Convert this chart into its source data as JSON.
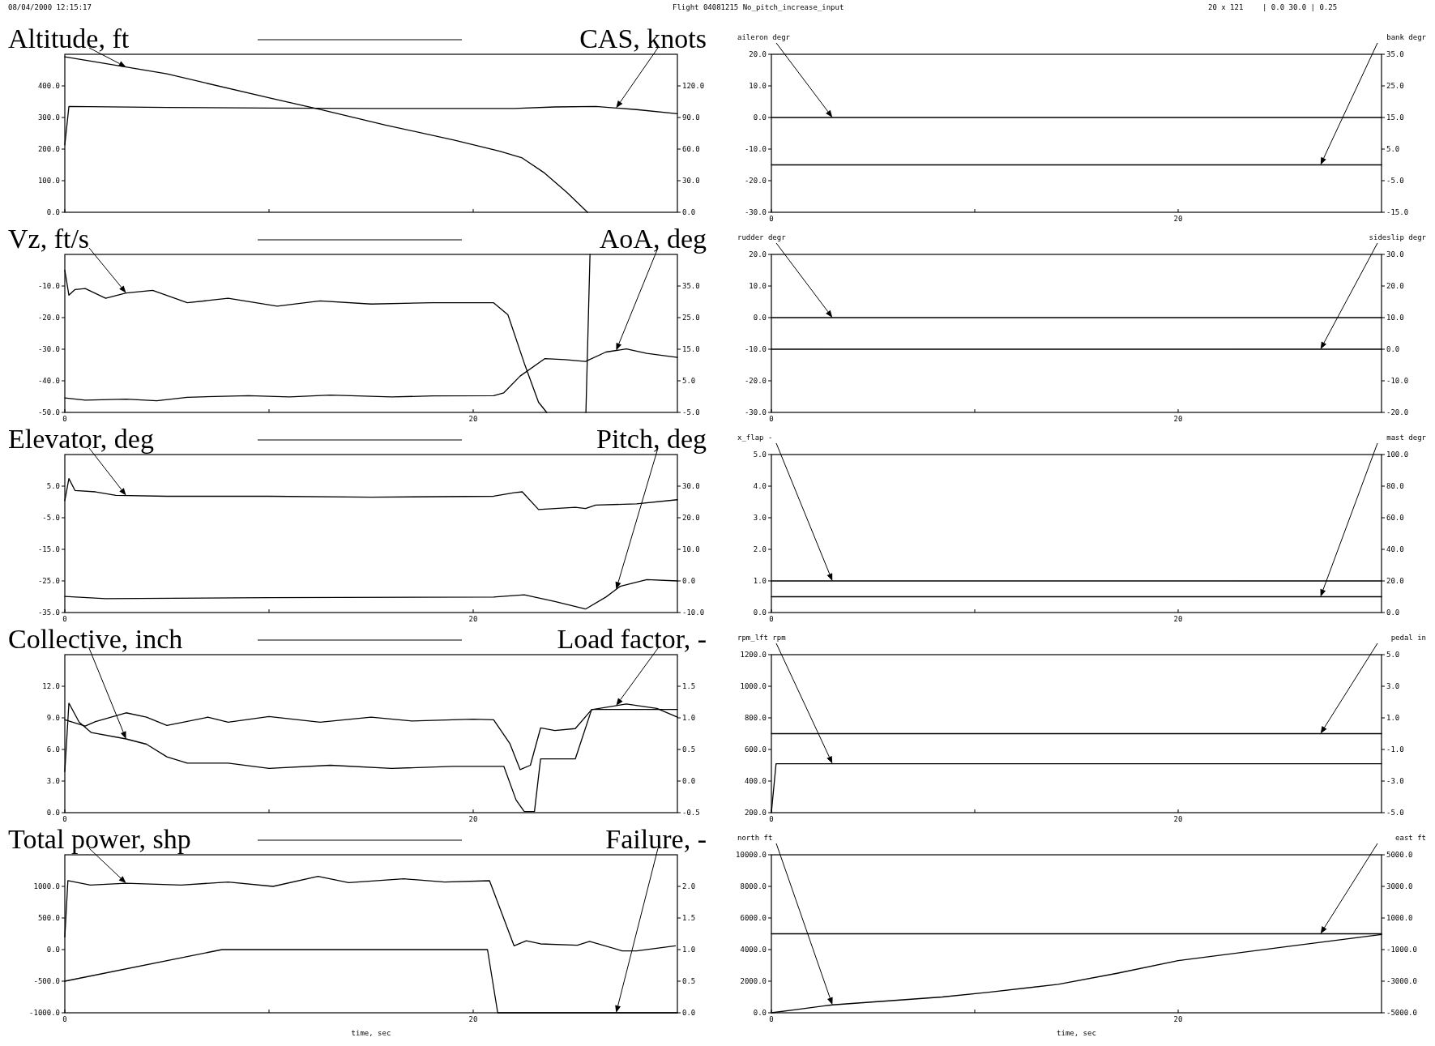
{
  "chart_data": [
    {
      "type": "line",
      "title": "Flight 04081215 No_pitch_increase_input",
      "annotations": [
        "08/04/2000 12:15:17",
        "20 x 121",
        "| 0.0 30.0 | 0.25"
      ],
      "ylabel": "Altitude, ft",
      "y2label": "CAS, knots",
      "xlim": [
        0,
        30
      ],
      "tick_labels": "y",
      "xticks": [
        0,
        10,
        20
      ],
      "ylim": [
        0,
        500
      ],
      "yticks": [
        {
          "value": 0,
          "label": "0.0"
        },
        {
          "value": 100,
          "label": "100.0"
        },
        {
          "value": 200,
          "label": "200.0"
        },
        {
          "value": 300,
          "label": "300.0"
        },
        {
          "value": 400,
          "label": "400.0"
        }
      ],
      "y2lim": [
        0,
        150
      ],
      "y2ticks": [
        {
          "value": 0,
          "label": "0.0"
        },
        {
          "value": 30,
          "label": "30.0"
        },
        {
          "value": 60,
          "label": "60.0"
        },
        {
          "value": 90,
          "label": "90.0"
        },
        {
          "value": 120,
          "label": "120.0"
        }
      ],
      "series": [
        {
          "color": "#000000",
          "axis": "y",
          "x": [
            0,
            1.5,
            5,
            10.2,
            12.6,
            15.7,
            19.1,
            21.3,
            22.4,
            23.5,
            24.6,
            25.6
          ],
          "values": [
            492,
            476,
            438,
            359,
            324,
            276,
            228,
            193,
            172,
            124,
            62,
            0
          ]
        },
        {
          "color": "#000000",
          "axis": "y2",
          "x": [
            0,
            0.2,
            5,
            10,
            15,
            22,
            24,
            26,
            28,
            30
          ],
          "values": [
            64,
            100.5,
            99.5,
            99,
            98.5,
            98.5,
            100,
            100.5,
            97.5,
            93.5
          ]
        }
      ]
    },
    {
      "type": "line",
      "ylabel": "Vz, ft/s",
      "y2label": "AoA, deg",
      "xlim": [
        0,
        30
      ],
      "xticks": [
        {
          "value": 0,
          "label": "0"
        },
        {
          "value": 10,
          "label": null
        },
        {
          "value": 20,
          "label": "20"
        }
      ],
      "ylim": [
        -50,
        0
      ],
      "yticks": [
        {
          "value": -50,
          "label": "-50.0"
        },
        {
          "value": -40,
          "label": "-40.0"
        },
        {
          "value": -30,
          "label": "-30.0"
        },
        {
          "value": -20,
          "label": "-20.0"
        },
        {
          "value": -10,
          "label": "-10.0"
        }
      ],
      "y2lim": [
        -5,
        45
      ],
      "y2ticks": [
        {
          "value": -5,
          "label": "-5.0"
        },
        {
          "value": 5,
          "label": "5.0"
        },
        {
          "value": 15,
          "label": "15.0"
        },
        {
          "value": 25,
          "label": "25.0"
        },
        {
          "value": 35,
          "label": "35.0"
        }
      ],
      "series": [
        {
          "color": "#000000",
          "axis": "y",
          "x": [
            0,
            0.2,
            0.5,
            1,
            2,
            3,
            4.3,
            6,
            8,
            10.4,
            12.5,
            15,
            18,
            21,
            21.7,
            22.5,
            23.2,
            23.6,
            24.5,
            25.52,
            25.72
          ],
          "values": [
            -5,
            -12.9,
            -11.1,
            -10.8,
            -13.9,
            -12.2,
            -11.4,
            -15.3,
            -13.9,
            -16.4,
            -14.7,
            -15.7,
            -15.3,
            -15.3,
            -19.1,
            -34.4,
            -46.8,
            -50,
            null,
            -50,
            0
          ]
        },
        {
          "color": "#000000",
          "axis": "y2",
          "x": [
            0,
            1,
            3,
            4.5,
            6,
            9,
            11,
            13,
            16,
            18,
            21,
            21.5,
            22.3,
            23.5,
            24.5,
            25.5,
            26.5,
            27.5,
            28.5,
            30
          ],
          "values": [
            -0.4,
            -1.1,
            -0.8,
            -1.3,
            -0.2,
            0.3,
            -0.1,
            0.5,
            -0.1,
            0.2,
            0.3,
            1.2,
            6.5,
            12,
            11.7,
            11.1,
            14.1,
            15.1,
            13.7,
            12.4
          ]
        }
      ]
    },
    {
      "type": "line",
      "ylabel": "Elevator, deg",
      "y2label": "Pitch, deg",
      "xlim": [
        0,
        30
      ],
      "xticks": [
        {
          "value": 0,
          "label": "0"
        },
        {
          "value": 10,
          "label": null
        },
        {
          "value": 20,
          "label": "20"
        }
      ],
      "ylim": [
        -35,
        15
      ],
      "yticks": [
        {
          "value": -35,
          "label": "-35.0"
        },
        {
          "value": -25,
          "label": "-25.0"
        },
        {
          "value": -15,
          "label": "-15.0"
        },
        {
          "value": -5,
          "label": "-5.0"
        },
        {
          "value": 5,
          "label": "5.0"
        }
      ],
      "y2lim": [
        -10,
        40
      ],
      "y2ticks": [
        {
          "value": -10,
          "label": "-10.0"
        },
        {
          "value": 0,
          "label": "0.0"
        },
        {
          "value": 10,
          "label": "10.0"
        },
        {
          "value": 20,
          "label": "20.0"
        },
        {
          "value": 30,
          "label": "30.0"
        }
      ],
      "series": [
        {
          "color": "#000000",
          "axis": "y",
          "x": [
            0,
            0.2,
            0.5,
            1.5,
            2.5,
            5,
            10,
            15,
            21,
            22,
            22.4,
            23.2,
            25,
            25.5,
            26,
            28,
            30
          ],
          "values": [
            0.4,
            7.4,
            3.6,
            3.2,
            2.1,
            1.8,
            1.8,
            1.5,
            1.8,
            2.9,
            3.2,
            -2.4,
            -1.7,
            -2.1,
            -1,
            -0.6,
            0.7
          ]
        },
        {
          "color": "#000000",
          "axis": "y2",
          "x": [
            0,
            2,
            10,
            21,
            22.5,
            24,
            25.5,
            26.5,
            27.2,
            28.5,
            30
          ],
          "values": [
            -4.9,
            -5.6,
            -5.3,
            -5.1,
            -4.4,
            -6.5,
            -8.9,
            -5.1,
            -1.7,
            0.4,
            0
          ]
        }
      ]
    },
    {
      "type": "line",
      "ylabel": "Collective, inch",
      "y2label": "Load factor, -",
      "xlim": [
        0,
        30
      ],
      "xticks": [
        {
          "value": 0,
          "label": "0"
        },
        {
          "value": 10,
          "label": null
        },
        {
          "value": 20,
          "label": "20"
        }
      ],
      "ylim": [
        0,
        15
      ],
      "yticks": [
        {
          "value": 0,
          "label": "0.0"
        },
        {
          "value": 3,
          "label": "3.0"
        },
        {
          "value": 6,
          "label": "6.0"
        },
        {
          "value": 9,
          "label": "9.0"
        },
        {
          "value": 12,
          "label": "12.0"
        }
      ],
      "y2lim": [
        -0.5,
        2
      ],
      "y2ticks": [
        {
          "value": -0.5,
          "label": "-0.5"
        },
        {
          "value": 0,
          "label": "0.0"
        },
        {
          "value": 0.5,
          "label": "0.5"
        },
        {
          "value": 1,
          "label": "1.0"
        },
        {
          "value": 1.5,
          "label": "1.5"
        }
      ],
      "series": [
        {
          "color": "#000000",
          "axis": "y",
          "x": [
            0,
            0.2,
            0.7,
            1.3,
            3,
            4,
            5,
            6,
            8,
            10,
            13,
            16,
            19,
            21.5,
            22.1,
            22.5,
            23,
            23.3,
            25,
            25.8,
            27,
            30
          ],
          "values": [
            3.9,
            10.4,
            8.6,
            7.6,
            7,
            6.5,
            5.3,
            4.7,
            4.7,
            4.2,
            4.5,
            4.2,
            4.4,
            4.4,
            1.2,
            0.1,
            0.1,
            5.1,
            5.1,
            9.8,
            9.8,
            9.8
          ]
        },
        {
          "color": "#000000",
          "axis": "y2",
          "x": [
            0,
            1,
            1.5,
            3,
            4,
            5,
            7,
            8,
            10,
            12.5,
            15,
            17,
            20,
            21,
            21.8,
            22.3,
            22.8,
            23.3,
            24,
            25,
            25.8,
            27.5,
            29,
            30
          ],
          "values": [
            0.97,
            0.87,
            0.94,
            1.08,
            1.01,
            0.88,
            1.01,
            0.93,
            1.02,
            0.93,
            1.01,
            0.95,
            0.98,
            0.97,
            0.59,
            0.18,
            0.25,
            0.84,
            0.8,
            0.83,
            1.13,
            1.22,
            1.15,
            1.01
          ]
        }
      ]
    },
    {
      "type": "line",
      "ylabel": "Total power, shp",
      "y2label": "Failure, -",
      "xlabel": "time, sec",
      "xlim": [
        0,
        30
      ],
      "xticks": [
        {
          "value": 0,
          "label": "0"
        },
        {
          "value": 10,
          "label": null
        },
        {
          "value": 20,
          "label": "20"
        }
      ],
      "ylim": [
        -1000,
        1500
      ],
      "yticks": [
        {
          "value": -1000,
          "label": "-1000.0"
        },
        {
          "value": -500,
          "label": "-500.0"
        },
        {
          "value": 0,
          "label": "0.0"
        },
        {
          "value": 500,
          "label": "500.0"
        },
        {
          "value": 1000,
          "label": "1000.0"
        }
      ],
      "y2lim": [
        0,
        2.5
      ],
      "y2ticks": [
        {
          "value": 0,
          "label": "0.0"
        },
        {
          "value": 0.5,
          "label": "0.5"
        },
        {
          "value": 1,
          "label": "1.0"
        },
        {
          "value": 1.5,
          "label": "1.5"
        },
        {
          "value": 2,
          "label": "2.0"
        }
      ],
      "series": [
        {
          "color": "#000000",
          "axis": "y",
          "x": [
            0,
            0.15,
            1.25,
            3,
            5.7,
            8,
            10.2,
            12.4,
            13.9,
            16.6,
            18.6,
            20.8,
            22,
            22.6,
            23.3,
            25.1,
            25.7,
            27.3,
            28,
            29.9
          ],
          "values": [
            200,
            1090,
            1020,
            1050,
            1020,
            1070,
            1000,
            1160,
            1060,
            1120,
            1070,
            1090,
            60,
            140,
            90,
            70,
            130,
            -20,
            -20,
            60
          ]
        },
        {
          "color": "#000000",
          "axis": "y2",
          "x": [
            0,
            7.7,
            20.7,
            21.2,
            30
          ],
          "values": [
            0.5,
            1,
            1,
            0,
            0
          ]
        }
      ]
    },
    {
      "type": "line",
      "ylabel": "aileron degr",
      "y2label": "bank degr",
      "xlim": [
        0,
        30
      ],
      "xticks": [
        {
          "value": 0,
          "label": "0"
        },
        {
          "value": 10,
          "label": null
        },
        {
          "value": 20,
          "label": "20"
        }
      ],
      "ylim": [
        -30,
        20
      ],
      "yticks": [
        {
          "value": -30,
          "label": "-30.0"
        },
        {
          "value": -20,
          "label": "-20.0"
        },
        {
          "value": -10,
          "label": "-10.0"
        },
        {
          "value": 0,
          "label": "0.0"
        },
        {
          "value": 10,
          "label": "10.0"
        },
        {
          "value": 20,
          "label": "20.0"
        }
      ],
      "y2lim": [
        -15,
        35
      ],
      "y2ticks": [
        {
          "value": -15,
          "label": "-15.0"
        },
        {
          "value": -5,
          "label": "-5.0"
        },
        {
          "value": 5,
          "label": "5.0"
        },
        {
          "value": 15,
          "label": "15.0"
        },
        {
          "value": 25,
          "label": "25.0"
        },
        {
          "value": 35,
          "label": "35.0"
        }
      ],
      "series": [
        {
          "color": "#000000",
          "axis": "y",
          "x": [
            0,
            30
          ],
          "values": [
            0,
            0
          ]
        },
        {
          "color": "#000000",
          "axis": "y2",
          "x": [
            0,
            30
          ],
          "values": [
            0,
            0
          ]
        }
      ]
    },
    {
      "type": "line",
      "ylabel": "rudder degr",
      "y2label": "sideslip degr",
      "xlim": [
        0,
        30
      ],
      "xticks": [
        {
          "value": 0,
          "label": "0"
        },
        {
          "value": 10,
          "label": null
        },
        {
          "value": 20,
          "label": "20"
        }
      ],
      "ylim": [
        -30,
        20
      ],
      "yticks": [
        {
          "value": -30,
          "label": "-30.0"
        },
        {
          "value": -20,
          "label": "-20.0"
        },
        {
          "value": -10,
          "label": "-10.0"
        },
        {
          "value": 0,
          "label": "0.0"
        },
        {
          "value": 10,
          "label": "10.0"
        },
        {
          "value": 20,
          "label": "20.0"
        }
      ],
      "y2lim": [
        -20,
        30
      ],
      "y2ticks": [
        {
          "value": -20,
          "label": "-20.0"
        },
        {
          "value": -10,
          "label": "-10.0"
        },
        {
          "value": 0,
          "label": "0.0"
        },
        {
          "value": 10,
          "label": "10.0"
        },
        {
          "value": 20,
          "label": "20.0"
        },
        {
          "value": 30,
          "label": "30.0"
        }
      ],
      "series": [
        {
          "color": "#000000",
          "axis": "y",
          "x": [
            0,
            30
          ],
          "values": [
            0,
            0
          ]
        },
        {
          "color": "#000000",
          "axis": "y2",
          "x": [
            0,
            30
          ],
          "values": [
            0,
            0
          ]
        }
      ]
    },
    {
      "type": "line",
      "ylabel": "x_flap -",
      "y2label": "mast degr",
      "xlim": [
        0,
        30
      ],
      "xticks": [
        {
          "value": 0,
          "label": "0"
        },
        {
          "value": 10,
          "label": null
        },
        {
          "value": 20,
          "label": "20"
        }
      ],
      "ylim": [
        0,
        5
      ],
      "yticks": [
        {
          "value": 0,
          "label": "0.0"
        },
        {
          "value": 1,
          "label": "1.0"
        },
        {
          "value": 2,
          "label": "2.0"
        },
        {
          "value": 3,
          "label": "3.0"
        },
        {
          "value": 4,
          "label": "4.0"
        },
        {
          "value": 5,
          "label": "5.0"
        }
      ],
      "y2lim": [
        0,
        100
      ],
      "y2ticks": [
        {
          "value": 0,
          "label": "0.0"
        },
        {
          "value": 20,
          "label": "20.0"
        },
        {
          "value": 40,
          "label": "40.0"
        },
        {
          "value": 60,
          "label": "60.0"
        },
        {
          "value": 80,
          "label": "80.0"
        },
        {
          "value": 100,
          "label": "100.0"
        }
      ],
      "series": [
        {
          "color": "#000000",
          "axis": "y",
          "x": [
            0,
            30
          ],
          "values": [
            1,
            1
          ]
        },
        {
          "color": "#000000",
          "axis": "y2",
          "x": [
            0,
            30
          ],
          "values": [
            10,
            10
          ]
        }
      ]
    },
    {
      "type": "line",
      "ylabel": "rpm_lft rpm",
      "y2label": "pedal in",
      "xlim": [
        0,
        30
      ],
      "xticks": [
        {
          "value": 0,
          "label": "0"
        },
        {
          "value": 10,
          "label": null
        },
        {
          "value": 20,
          "label": "20"
        }
      ],
      "ylim": [
        200,
        1200
      ],
      "yticks": [
        {
          "value": 200,
          "label": "200.0"
        },
        {
          "value": 400,
          "label": "400.0"
        },
        {
          "value": 600,
          "label": "600.0"
        },
        {
          "value": 800,
          "label": "800.0"
        },
        {
          "value": 1000,
          "label": "1000.0"
        },
        {
          "value": 1200,
          "label": "1200.0"
        }
      ],
      "y2lim": [
        -5,
        5
      ],
      "y2ticks": [
        {
          "value": -5,
          "label": "-5.0"
        },
        {
          "value": -3,
          "label": "-3.0"
        },
        {
          "value": -1,
          "label": "-1.0"
        },
        {
          "value": 1,
          "label": "1.0"
        },
        {
          "value": 3,
          "label": "3.0"
        },
        {
          "value": 5,
          "label": "5.0"
        }
      ],
      "series": [
        {
          "color": "#000000",
          "axis": "y",
          "x": [
            0,
            0.23,
            30
          ],
          "values": [
            200,
            510,
            510
          ]
        },
        {
          "color": "#000000",
          "axis": "y2",
          "x": [
            0,
            30
          ],
          "values": [
            0,
            0
          ]
        }
      ]
    },
    {
      "type": "line",
      "ylabel": "north ft",
      "y2label": "east ft",
      "xlabel": "time, sec",
      "xlim": [
        0,
        30
      ],
      "xticks": [
        {
          "value": 0,
          "label": "0"
        },
        {
          "value": 10,
          "label": null
        },
        {
          "value": 20,
          "label": "20"
        }
      ],
      "ylim": [
        0,
        10000
      ],
      "yticks": [
        {
          "value": 0,
          "label": "0.0"
        },
        {
          "value": 2000,
          "label": "2000.0"
        },
        {
          "value": 4000,
          "label": "4000.0"
        },
        {
          "value": 6000,
          "label": "6000.0"
        },
        {
          "value": 8000,
          "label": "8000.0"
        },
        {
          "value": 10000,
          "label": "10000.0"
        }
      ],
      "y2lim": [
        -5000,
        5000
      ],
      "y2ticks": [
        {
          "value": -5000,
          "label": "-5000.0"
        },
        {
          "value": -3000,
          "label": "-3000.0"
        },
        {
          "value": -1000,
          "label": "-1000.0"
        },
        {
          "value": 1000,
          "label": "1000.0"
        },
        {
          "value": 3000,
          "label": "3000.0"
        },
        {
          "value": 5000,
          "label": "5000.0"
        }
      ],
      "series": [
        {
          "color": "#000000",
          "axis": "y",
          "x": [
            0,
            1.2,
            3,
            8.4,
            10.7,
            14.1,
            17,
            20,
            25.4,
            30
          ],
          "values": [
            0,
            200,
            500,
            1000,
            1300,
            1800,
            2500,
            3300,
            4200,
            4950
          ]
        },
        {
          "color": "#000000",
          "axis": "y2",
          "x": [
            0,
            30
          ],
          "values": [
            0,
            0
          ]
        }
      ]
    }
  ]
}
